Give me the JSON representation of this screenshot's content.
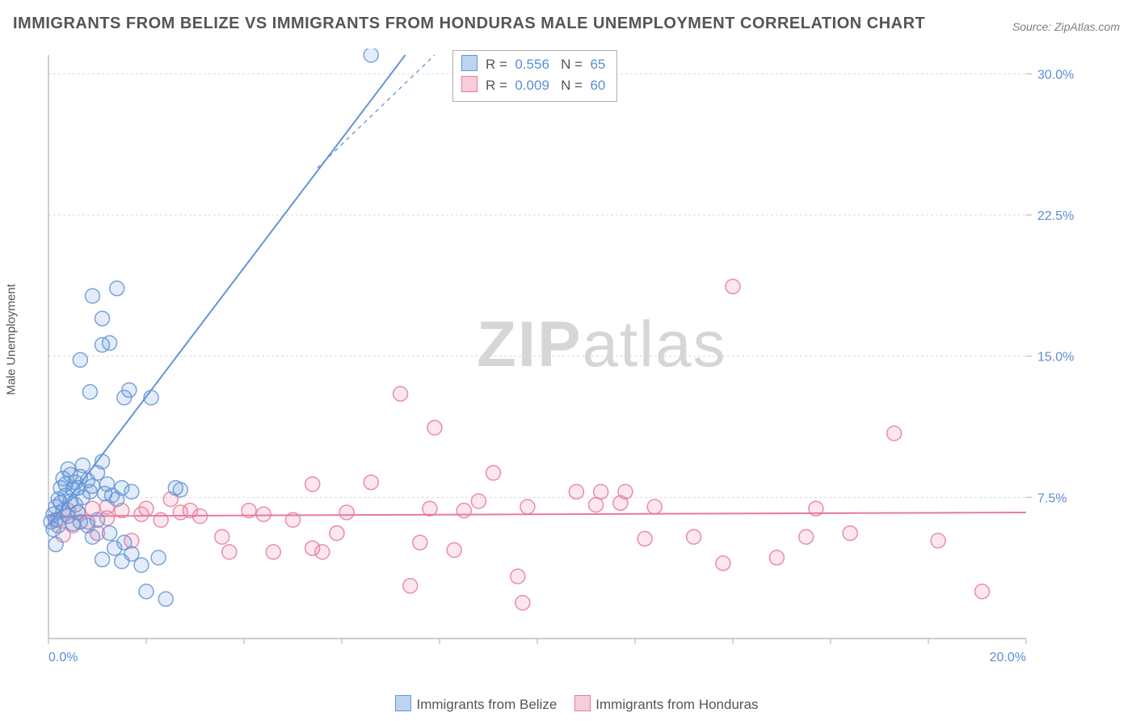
{
  "title": "IMMIGRANTS FROM BELIZE VS IMMIGRANTS FROM HONDURAS MALE UNEMPLOYMENT CORRELATION CHART",
  "source": "Source: ZipAtlas.com",
  "ylabel": "Male Unemployment",
  "watermark_zip": "ZIP",
  "watermark_atlas": "atlas",
  "chart": {
    "type": "scatter",
    "background_color": "#ffffff",
    "grid_color": "#d9d9d9",
    "axis_color": "#b0b0b0",
    "xlim": [
      0,
      20
    ],
    "ylim": [
      0,
      31
    ],
    "xtick_labels": {
      "0": "0.0%",
      "20": "20.0%"
    },
    "ytick_labels": {
      "7.5": "7.5%",
      "15": "15.0%",
      "22.5": "22.5%",
      "30": "30.0%"
    },
    "xtick_minor_step": 2,
    "tick_label_color": "#5b8dd6",
    "tick_label_fontsize": 16,
    "marker_radius": 9,
    "marker_fill_opacity": 0.18,
    "marker_stroke_width": 1.5,
    "trend_line_width": 2
  },
  "series": {
    "belize": {
      "label": "Immigrants from Belize",
      "color": "#6495d6",
      "fill": "#bcd4ef",
      "stats": {
        "R": "0.556",
        "N": "65"
      },
      "trend": {
        "x1": 0,
        "y1": 6.0,
        "x2": 7.3,
        "y2": 31,
        "dash_extend": true
      },
      "points": [
        [
          0.05,
          6.2
        ],
        [
          0.1,
          5.8
        ],
        [
          0.1,
          6.6
        ],
        [
          0.15,
          7.0
        ],
        [
          0.15,
          6.3
        ],
        [
          0.2,
          7.4
        ],
        [
          0.2,
          6.0
        ],
        [
          0.25,
          8.0
        ],
        [
          0.25,
          7.2
        ],
        [
          0.3,
          8.5
        ],
        [
          0.3,
          6.8
        ],
        [
          0.35,
          7.6
        ],
        [
          0.35,
          8.2
        ],
        [
          0.4,
          9.0
        ],
        [
          0.4,
          6.5
        ],
        [
          0.45,
          7.3
        ],
        [
          0.45,
          8.7
        ],
        [
          0.5,
          7.9
        ],
        [
          0.5,
          6.1
        ],
        [
          0.55,
          8.3
        ],
        [
          0.55,
          7.1
        ],
        [
          0.6,
          6.7
        ],
        [
          0.6,
          8.0
        ],
        [
          0.65,
          6.2
        ],
        [
          0.65,
          8.6
        ],
        [
          0.7,
          9.2
        ],
        [
          0.7,
          7.5
        ],
        [
          0.8,
          8.4
        ],
        [
          0.8,
          6.0
        ],
        [
          0.85,
          7.8
        ],
        [
          0.9,
          8.1
        ],
        [
          0.9,
          5.4
        ],
        [
          1.0,
          8.8
        ],
        [
          1.0,
          6.3
        ],
        [
          1.1,
          9.4
        ],
        [
          1.1,
          4.2
        ],
        [
          1.15,
          7.7
        ],
        [
          1.2,
          8.2
        ],
        [
          1.25,
          5.6
        ],
        [
          1.3,
          7.6
        ],
        [
          1.35,
          4.8
        ],
        [
          1.4,
          7.4
        ],
        [
          1.5,
          8.0
        ],
        [
          1.5,
          4.1
        ],
        [
          1.55,
          5.1
        ],
        [
          1.7,
          7.8
        ],
        [
          1.7,
          4.5
        ],
        [
          1.9,
          3.9
        ],
        [
          2.0,
          2.5
        ],
        [
          2.25,
          4.3
        ],
        [
          2.4,
          2.1
        ],
        [
          2.6,
          8.0
        ],
        [
          2.7,
          7.9
        ],
        [
          0.65,
          14.8
        ],
        [
          0.85,
          13.1
        ],
        [
          0.9,
          18.2
        ],
        [
          1.1,
          15.6
        ],
        [
          1.1,
          17.0
        ],
        [
          1.25,
          15.7
        ],
        [
          1.4,
          18.6
        ],
        [
          1.55,
          12.8
        ],
        [
          1.65,
          13.2
        ],
        [
          2.1,
          12.8
        ],
        [
          6.6,
          31.3
        ],
        [
          0.15,
          5.0
        ]
      ]
    },
    "honduras": {
      "label": "Immigrants from Honduras",
      "color": "#e87a9c",
      "fill": "#f7cdd9",
      "stats": {
        "R": "0.009",
        "N": "60"
      },
      "trend": {
        "x1": 0,
        "y1": 6.5,
        "x2": 20,
        "y2": 6.7
      },
      "points": [
        [
          0.2,
          6.3
        ],
        [
          0.3,
          5.5
        ],
        [
          0.4,
          6.8
        ],
        [
          0.5,
          6.0
        ],
        [
          0.6,
          6.7
        ],
        [
          0.8,
          6.2
        ],
        [
          0.9,
          6.9
        ],
        [
          1.0,
          5.6
        ],
        [
          1.2,
          6.4
        ],
        [
          1.2,
          7.0
        ],
        [
          1.5,
          6.8
        ],
        [
          1.7,
          5.2
        ],
        [
          1.9,
          6.6
        ],
        [
          2.0,
          6.9
        ],
        [
          2.3,
          6.3
        ],
        [
          2.5,
          7.4
        ],
        [
          2.7,
          6.7
        ],
        [
          2.9,
          6.8
        ],
        [
          3.1,
          6.5
        ],
        [
          3.55,
          5.4
        ],
        [
          3.7,
          4.6
        ],
        [
          4.1,
          6.8
        ],
        [
          4.4,
          6.6
        ],
        [
          4.6,
          4.6
        ],
        [
          5.0,
          6.3
        ],
        [
          5.4,
          8.2
        ],
        [
          5.4,
          4.8
        ],
        [
          5.6,
          4.6
        ],
        [
          5.9,
          5.6
        ],
        [
          6.1,
          6.7
        ],
        [
          6.6,
          8.3
        ],
        [
          7.2,
          13.0
        ],
        [
          7.4,
          2.8
        ],
        [
          7.6,
          5.1
        ],
        [
          7.8,
          6.9
        ],
        [
          7.9,
          11.2
        ],
        [
          8.3,
          4.7
        ],
        [
          8.5,
          6.8
        ],
        [
          8.8,
          7.3
        ],
        [
          9.1,
          8.8
        ],
        [
          9.6,
          3.3
        ],
        [
          9.8,
          7.0
        ],
        [
          9.7,
          1.9
        ],
        [
          10.8,
          7.8
        ],
        [
          11.2,
          7.1
        ],
        [
          11.3,
          7.8
        ],
        [
          11.7,
          7.2
        ],
        [
          11.8,
          7.8
        ],
        [
          12.2,
          5.3
        ],
        [
          12.4,
          7.0
        ],
        [
          13.2,
          5.4
        ],
        [
          13.8,
          4.0
        ],
        [
          14.0,
          18.7
        ],
        [
          14.9,
          4.3
        ],
        [
          15.5,
          5.4
        ],
        [
          15.7,
          6.9
        ],
        [
          16.4,
          5.6
        ],
        [
          17.3,
          10.9
        ],
        [
          19.1,
          2.5
        ],
        [
          18.2,
          5.2
        ]
      ]
    }
  },
  "stats_box": {
    "rows": [
      {
        "series": "belize",
        "R_label": "R",
        "N_label": "N"
      },
      {
        "series": "honduras",
        "R_label": "R",
        "N_label": "N"
      }
    ]
  }
}
